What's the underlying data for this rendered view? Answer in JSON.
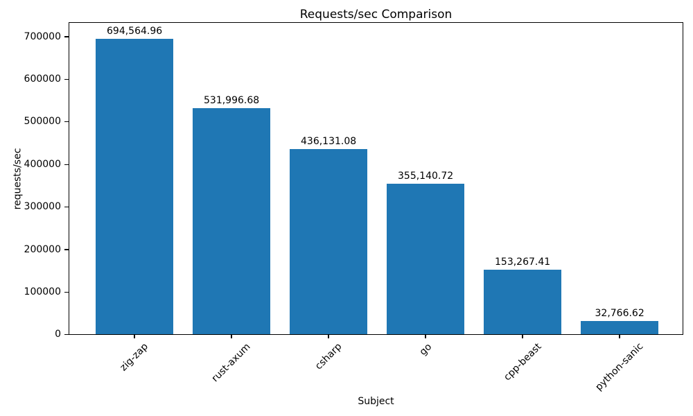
{
  "chart_data": {
    "type": "bar",
    "title": "Requests/sec Comparison",
    "xlabel": "Subject",
    "ylabel": "requests/sec",
    "categories": [
      "zig-zap",
      "rust-axum",
      "csharp",
      "go",
      "cpp-beast",
      "python-sanic"
    ],
    "values": [
      694564.96,
      531996.68,
      436131.08,
      355140.72,
      153267.41,
      32766.62
    ],
    "value_labels": [
      "694,564.96",
      "531,996.68",
      "436,131.08",
      "355,140.72",
      "153,267.41",
      "32,766.62"
    ],
    "yticks": [
      0,
      100000,
      200000,
      300000,
      400000,
      500000,
      600000,
      700000
    ],
    "ytick_labels": [
      "0",
      "100000",
      "200000",
      "300000",
      "400000",
      "500000",
      "600000",
      "700000"
    ],
    "ylim": [
      0,
      733000
    ],
    "grid": false,
    "legend": null,
    "bar_color": "#1f77b4",
    "text_color": "#000000",
    "background_color": "#ffffff"
  }
}
